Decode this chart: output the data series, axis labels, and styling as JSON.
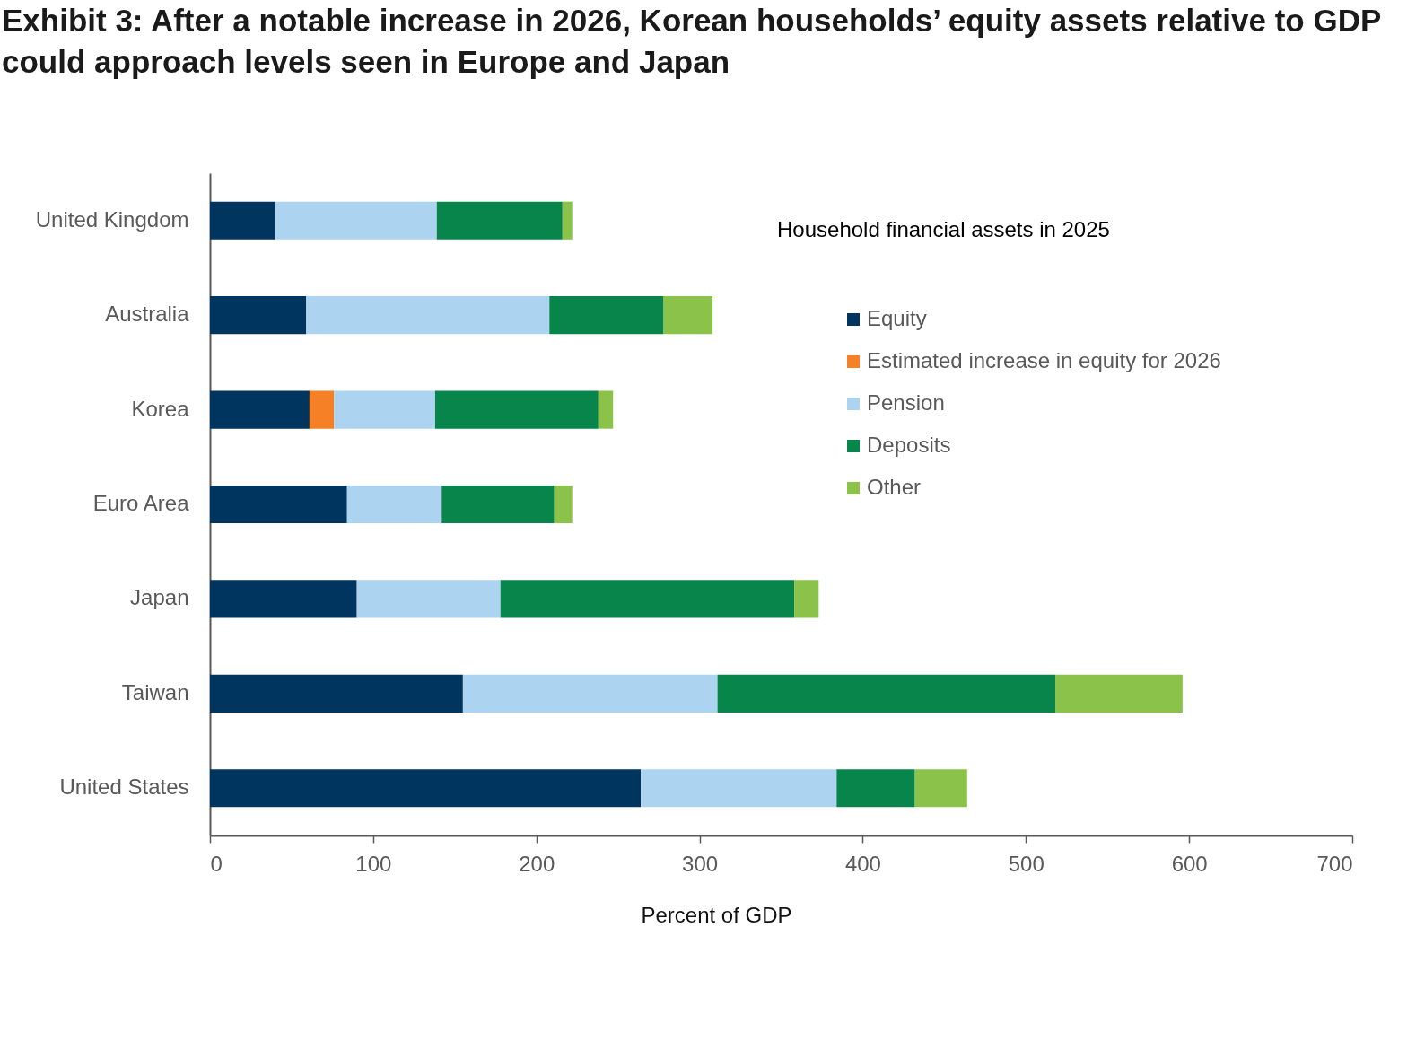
{
  "chart_data": {
    "type": "bar",
    "title": "Exhibit 3: After a notable increase in 2026, Korean households’ equity assets relative to GDP could approach levels seen in Europe and Japan",
    "xlabel": "Percent of GDP",
    "legend_title": "Household financial assets in 2025",
    "orientation": "horizontal",
    "stacked": true,
    "legend": "top right",
    "categories": [
      "United Kingdom",
      "Australia",
      "Korea",
      "Euro Area",
      "Japan",
      "Taiwan",
      "United States"
    ],
    "xlim": [
      0,
      700
    ],
    "xticks": [
      0,
      100,
      200,
      300,
      400,
      500,
      600,
      700
    ],
    "series": [
      {
        "name": "Equity",
        "color": "#003560",
        "values": [
          40,
          59,
          61,
          84,
          90,
          155,
          264
        ]
      },
      {
        "name": "Estimated increase in equity for 2026",
        "color": "#f58025",
        "values": [
          null,
          null,
          15,
          null,
          null,
          null,
          null
        ]
      },
      {
        "name": "Pension",
        "color": "#acd3ef",
        "values": [
          99,
          149,
          62,
          58,
          88,
          156,
          120
        ]
      },
      {
        "name": "Deposits",
        "color": "#08854a",
        "values": [
          77,
          70,
          100,
          69,
          180,
          207,
          48
        ]
      },
      {
        "name": "Other",
        "color": "#8bc34a",
        "values": [
          6,
          30,
          9,
          11,
          15,
          78,
          32
        ]
      }
    ]
  }
}
